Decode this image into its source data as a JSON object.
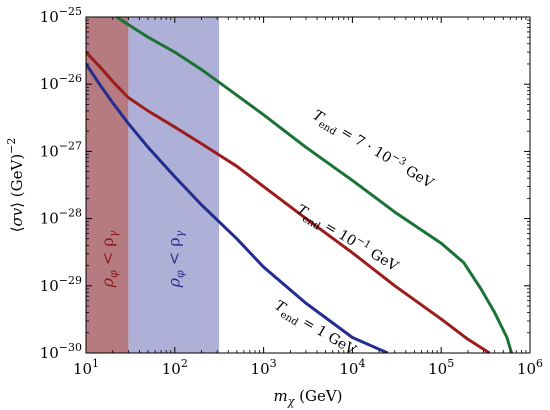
{
  "chart_data": {
    "type": "line",
    "x_scale": "log",
    "y_scale": "log",
    "xlim": [
      10,
      1000000
    ],
    "ylim": [
      1e-30,
      1e-25
    ],
    "xlabel": "m_χ (GeV)",
    "ylabel": "⟨σv⟩ (GeV)^−2",
    "x_ticks": [
      {
        "value": 10,
        "base": "10",
        "exp": "1"
      },
      {
        "value": 100,
        "base": "10",
        "exp": "2"
      },
      {
        "value": 1000,
        "base": "10",
        "exp": "3"
      },
      {
        "value": 10000,
        "base": "10",
        "exp": "4"
      },
      {
        "value": 100000,
        "base": "10",
        "exp": "5"
      },
      {
        "value": 1000000,
        "base": "10",
        "exp": "6"
      }
    ],
    "y_ticks": [
      {
        "value": 1e-30,
        "base": "10",
        "exp": "−30"
      },
      {
        "value": 1e-29,
        "base": "10",
        "exp": "−29"
      },
      {
        "value": 1e-28,
        "base": "10",
        "exp": "−28"
      },
      {
        "value": 1e-27,
        "base": "10",
        "exp": "−27"
      },
      {
        "value": 1e-26,
        "base": "10",
        "exp": "−26"
      },
      {
        "value": 1e-25,
        "base": "10",
        "exp": "−25"
      }
    ],
    "regions": [
      {
        "x_range": [
          10,
          30
        ],
        "color": "#9c4f57",
        "opacity": 0.75,
        "label_main": "ρ",
        "label_sub": "φ",
        "label_op": " < ρ",
        "label_sub2": "γ",
        "label_color": "#8b1a1a"
      },
      {
        "x_range": [
          30,
          315
        ],
        "color": "#8d8fc6",
        "opacity": 0.7,
        "label_main": "ρ",
        "label_sub": "φ",
        "label_op": " < ρ",
        "label_sub2": "γ",
        "label_color": "#2e2e8f"
      }
    ],
    "series": [
      {
        "color": "#1a7335",
        "label": {
          "pre": "T",
          "sub": "end",
          "mid": " = 7 · 10",
          "sup": "−3",
          "post": " GeV",
          "x": 3500,
          "y": 3.2e-27,
          "angle": 31
        },
        "x": [
          22,
          50,
          100,
          200,
          400,
          1000,
          3000,
          10000,
          30000,
          100000,
          180000,
          280000,
          400000,
          550000,
          620000
        ],
        "y": [
          1e-25,
          5e-26,
          3e-26,
          1.65e-26,
          8.5e-27,
          3.5e-27,
          1.15e-27,
          3.7e-28,
          1.25e-28,
          4.3e-29,
          2.2e-29,
          9e-30,
          4e-30,
          1.7e-30,
          1e-30
        ]
      },
      {
        "color": "#9c1b1b",
        "label": {
          "pre": "T",
          "sub": "end",
          "mid": " = 10",
          "sup": "−1",
          "post": " GeV",
          "x": 2300,
          "y": 1.25e-28,
          "angle": 31
        },
        "x": [
          10,
          15,
          20,
          30,
          50,
          100,
          200,
          500,
          1000,
          3000,
          10000,
          30000,
          100000,
          200000,
          350000
        ],
        "y": [
          3e-26,
          1.7e-26,
          1.1e-26,
          6.3e-27,
          4e-27,
          2.3e-27,
          1.3e-27,
          6e-28,
          3e-28,
          1e-28,
          3.1e-29,
          1e-29,
          3.2e-30,
          1.6e-30,
          1e-30
        ]
      },
      {
        "color": "#232d8f",
        "label": {
          "pre": "T",
          "sub": "end",
          "mid": " = 1 GeV",
          "sup": "",
          "post": "",
          "x": 1300,
          "y": 4.7e-30,
          "angle": 31
        },
        "x": [
          10,
          15,
          20,
          30,
          50,
          100,
          200,
          500,
          1000,
          3000,
          10000,
          25000
        ],
        "y": [
          2e-26,
          9e-27,
          5.3e-27,
          2.6e-27,
          1.15e-27,
          4.2e-28,
          1.6e-28,
          5e-29,
          1.9e-29,
          5.5e-30,
          1.7e-30,
          1e-30
        ]
      }
    ]
  }
}
